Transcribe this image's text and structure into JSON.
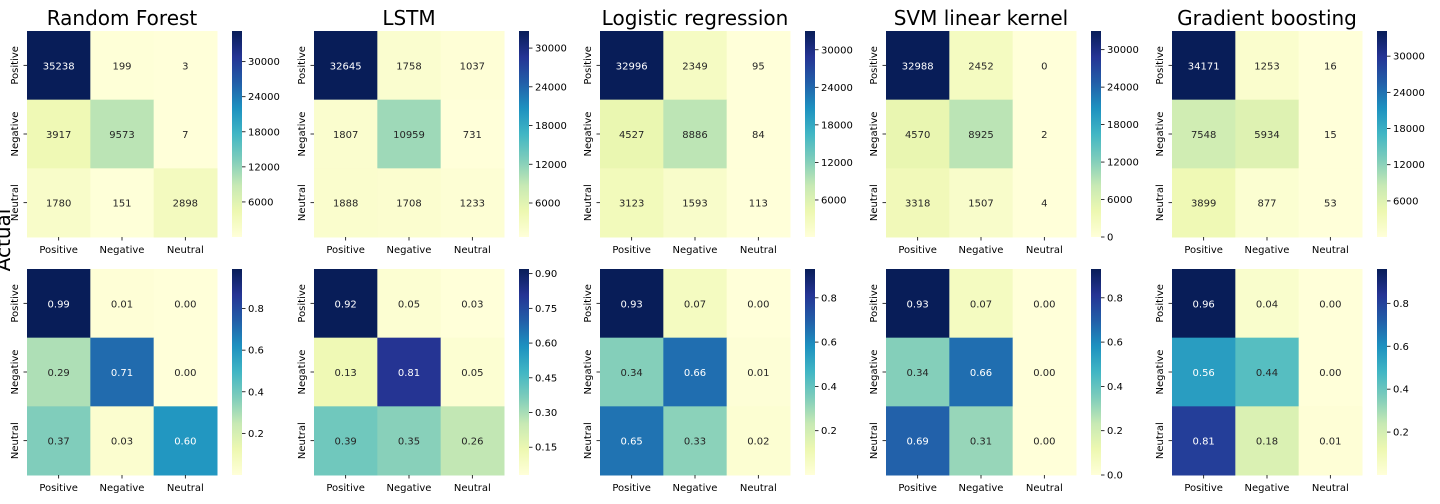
{
  "figure": {
    "shared_ylabel": "Actual"
  },
  "colorscale": {
    "name": "YlGnBu",
    "stops": [
      "#ffffd9",
      "#edf8b1",
      "#c7e9b4",
      "#7fcdbb",
      "#41b6c4",
      "#1d91c0",
      "#225ea8",
      "#253494",
      "#081d58"
    ]
  },
  "chart_data": [
    {
      "type": "heatmap",
      "title": "Random Forest",
      "xlabel": "",
      "ylabel": "",
      "x_categories": [
        "Positive",
        "Negative",
        "Neutral"
      ],
      "y_categories": [
        "Positive",
        "Negative",
        "Neutral"
      ],
      "values": [
        [
          35238,
          199,
          3
        ],
        [
          3917,
          9573,
          7
        ],
        [
          1780,
          151,
          2898
        ]
      ],
      "labels": [
        [
          "35238",
          "199",
          "3"
        ],
        [
          "3917",
          "9573",
          "7"
        ],
        [
          "1780",
          "151",
          "2898"
        ]
      ],
      "vmin": 3,
      "vmax": 35238,
      "colorbar_ticks": [
        6000,
        12000,
        18000,
        24000,
        30000
      ],
      "colorbar_tick_labels": [
        "6000",
        "12000",
        "18000",
        "24000",
        "30000"
      ]
    },
    {
      "type": "heatmap",
      "title": "LSTM",
      "xlabel": "",
      "ylabel": "",
      "x_categories": [
        "Positive",
        "Negative",
        "Neutral"
      ],
      "y_categories": [
        "Positive",
        "Negative",
        "Neutral"
      ],
      "values": [
        [
          32645,
          1758,
          1037
        ],
        [
          1807,
          10959,
          731
        ],
        [
          1888,
          1708,
          1233
        ]
      ],
      "labels": [
        [
          "32645",
          "1758",
          "1037"
        ],
        [
          "1807",
          "10959",
          "731"
        ],
        [
          "1888",
          "1708",
          "1233"
        ]
      ],
      "vmin": 731,
      "vmax": 32645,
      "colorbar_ticks": [
        6000,
        12000,
        18000,
        24000,
        30000
      ],
      "colorbar_tick_labels": [
        "6000",
        "12000",
        "18000",
        "24000",
        "30000"
      ]
    },
    {
      "type": "heatmap",
      "title": "Logistic regression",
      "xlabel": "",
      "ylabel": "",
      "x_categories": [
        "Positive",
        "Negative",
        "Neutral"
      ],
      "y_categories": [
        "Positive",
        "Negative",
        "Neutral"
      ],
      "values": [
        [
          32996,
          2349,
          95
        ],
        [
          4527,
          8886,
          84
        ],
        [
          3123,
          1593,
          113
        ]
      ],
      "labels": [
        [
          "32996",
          "2349",
          "95"
        ],
        [
          "4527",
          "8886",
          "84"
        ],
        [
          "3123",
          "1593",
          "113"
        ]
      ],
      "vmin": 84,
      "vmax": 32996,
      "colorbar_ticks": [
        6000,
        12000,
        18000,
        24000,
        30000
      ],
      "colorbar_tick_labels": [
        "6000",
        "12000",
        "18000",
        "24000",
        "30000"
      ]
    },
    {
      "type": "heatmap",
      "title": "SVM linear kernel",
      "xlabel": "",
      "ylabel": "",
      "x_categories": [
        "Positive",
        "Negative",
        "Neutral"
      ],
      "y_categories": [
        "Positive",
        "Negative",
        "Neutral"
      ],
      "values": [
        [
          32988,
          2452,
          0
        ],
        [
          4570,
          8925,
          2
        ],
        [
          3318,
          1507,
          4
        ]
      ],
      "labels": [
        [
          "32988",
          "2452",
          "0"
        ],
        [
          "4570",
          "8925",
          "2"
        ],
        [
          "3318",
          "1507",
          "4"
        ]
      ],
      "vmin": 0,
      "vmax": 32988,
      "colorbar_ticks": [
        0,
        6000,
        12000,
        18000,
        24000,
        30000
      ],
      "colorbar_tick_labels": [
        "0",
        "6000",
        "12000",
        "18000",
        "24000",
        "30000"
      ]
    },
    {
      "type": "heatmap",
      "title": "Gradient boosting",
      "xlabel": "",
      "ylabel": "",
      "x_categories": [
        "Positive",
        "Negative",
        "Neutral"
      ],
      "y_categories": [
        "Positive",
        "Negative",
        "Neutral"
      ],
      "values": [
        [
          34171,
          1253,
          16
        ],
        [
          7548,
          5934,
          15
        ],
        [
          3899,
          877,
          53
        ]
      ],
      "labels": [
        [
          "34171",
          "1253",
          "16"
        ],
        [
          "7548",
          "5934",
          "15"
        ],
        [
          "3899",
          "877",
          "53"
        ]
      ],
      "vmin": 15,
      "vmax": 34171,
      "colorbar_ticks": [
        6000,
        12000,
        18000,
        24000,
        30000
      ],
      "colorbar_tick_labels": [
        "6000",
        "12000",
        "18000",
        "24000",
        "30000"
      ]
    },
    {
      "type": "heatmap",
      "title": "",
      "xlabel": "",
      "ylabel": "",
      "x_categories": [
        "Positive",
        "Negative",
        "Neutral"
      ],
      "y_categories": [
        "Positive",
        "Negative",
        "Neutral"
      ],
      "values": [
        [
          0.99,
          0.01,
          0.0
        ],
        [
          0.29,
          0.71,
          0.0
        ],
        [
          0.37,
          0.03,
          0.6
        ]
      ],
      "labels": [
        [
          "0.99",
          "0.01",
          "0.00"
        ],
        [
          "0.29",
          "0.71",
          "0.00"
        ],
        [
          "0.37",
          "0.03",
          "0.60"
        ]
      ],
      "vmin": 0.0,
      "vmax": 0.99,
      "colorbar_ticks": [
        0.2,
        0.4,
        0.6,
        0.8
      ],
      "colorbar_tick_labels": [
        "0.2",
        "0.4",
        "0.6",
        "0.8"
      ]
    },
    {
      "type": "heatmap",
      "title": "",
      "xlabel": "",
      "ylabel": "",
      "x_categories": [
        "Positive",
        "Negative",
        "Neutral"
      ],
      "y_categories": [
        "Positive",
        "Negative",
        "Neutral"
      ],
      "values": [
        [
          0.92,
          0.05,
          0.03
        ],
        [
          0.13,
          0.81,
          0.05
        ],
        [
          0.39,
          0.35,
          0.26
        ]
      ],
      "labels": [
        [
          "0.92",
          "0.05",
          "0.03"
        ],
        [
          "0.13",
          "0.81",
          "0.05"
        ],
        [
          "0.39",
          "0.35",
          "0.26"
        ]
      ],
      "vmin": 0.03,
      "vmax": 0.92,
      "colorbar_ticks": [
        0.15,
        0.3,
        0.45,
        0.6,
        0.75,
        0.9
      ],
      "colorbar_tick_labels": [
        "0.15",
        "0.30",
        "0.45",
        "0.60",
        "0.75",
        "0.90"
      ]
    },
    {
      "type": "heatmap",
      "title": "",
      "xlabel": "",
      "ylabel": "",
      "x_categories": [
        "Positive",
        "Negative",
        "Neutral"
      ],
      "y_categories": [
        "Positive",
        "Negative",
        "Neutral"
      ],
      "values": [
        [
          0.93,
          0.07,
          0.0
        ],
        [
          0.34,
          0.66,
          0.01
        ],
        [
          0.65,
          0.33,
          0.02
        ]
      ],
      "labels": [
        [
          "0.93",
          "0.07",
          "0.00"
        ],
        [
          "0.34",
          "0.66",
          "0.01"
        ],
        [
          "0.65",
          "0.33",
          "0.02"
        ]
      ],
      "vmin": 0.0,
      "vmax": 0.93,
      "colorbar_ticks": [
        0.2,
        0.4,
        0.6,
        0.8
      ],
      "colorbar_tick_labels": [
        "0.2",
        "0.4",
        "0.6",
        "0.8"
      ]
    },
    {
      "type": "heatmap",
      "title": "",
      "xlabel": "",
      "ylabel": "",
      "x_categories": [
        "Positive",
        "Negative",
        "Neutral"
      ],
      "y_categories": [
        "Positive",
        "Negative",
        "Neutral"
      ],
      "values": [
        [
          0.93,
          0.07,
          0.0
        ],
        [
          0.34,
          0.66,
          0.0
        ],
        [
          0.69,
          0.31,
          0.0
        ]
      ],
      "labels": [
        [
          "0.93",
          "0.07",
          "0.00"
        ],
        [
          "0.34",
          "0.66",
          "0.00"
        ],
        [
          "0.69",
          "0.31",
          "0.00"
        ]
      ],
      "vmin": 0.0,
      "vmax": 0.93,
      "colorbar_ticks": [
        0.0,
        0.2,
        0.4,
        0.6,
        0.8
      ],
      "colorbar_tick_labels": [
        "0.0",
        "0.2",
        "0.4",
        "0.6",
        "0.8"
      ]
    },
    {
      "type": "heatmap",
      "title": "",
      "xlabel": "",
      "ylabel": "",
      "x_categories": [
        "Positive",
        "Negative",
        "Neutral"
      ],
      "y_categories": [
        "Positive",
        "Negative",
        "Neutral"
      ],
      "values": [
        [
          0.96,
          0.04,
          0.0
        ],
        [
          0.56,
          0.44,
          0.0
        ],
        [
          0.81,
          0.18,
          0.01
        ]
      ],
      "labels": [
        [
          "0.96",
          "0.04",
          "0.00"
        ],
        [
          "0.56",
          "0.44",
          "0.00"
        ],
        [
          "0.81",
          "0.18",
          "0.01"
        ]
      ],
      "vmin": 0.0,
      "vmax": 0.96,
      "colorbar_ticks": [
        0.2,
        0.4,
        0.6,
        0.8
      ],
      "colorbar_tick_labels": [
        "0.2",
        "0.4",
        "0.6",
        "0.8"
      ]
    }
  ]
}
